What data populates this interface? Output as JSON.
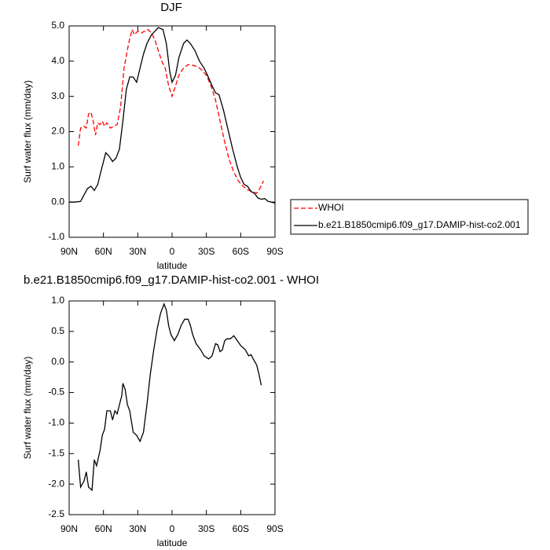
{
  "chart_data": [
    {
      "type": "line",
      "title": "DJF",
      "ylabel": "Surf water flux (mm/day)",
      "xlabel": "latitude",
      "xlim": [
        90,
        -90
      ],
      "xticks": [
        {
          "value": 90,
          "label": "90N"
        },
        {
          "value": 60,
          "label": "60N"
        },
        {
          "value": 30,
          "label": "30N"
        },
        0,
        {
          "value": -30,
          "label": "30S"
        },
        {
          "value": -60,
          "label": "60S"
        },
        {
          "value": -90,
          "label": "90S"
        }
      ],
      "ylim": [
        -1,
        5
      ],
      "yticks": [
        {
          "value": -1,
          "label": "-1.0"
        },
        {
          "value": 0,
          "label": "0.0"
        },
        {
          "value": 1,
          "label": "1.0"
        },
        {
          "value": 2,
          "label": "2.0"
        },
        {
          "value": 3,
          "label": "3.0"
        },
        {
          "value": 4,
          "label": "4.0"
        },
        {
          "value": 5,
          "label": "5.0"
        }
      ],
      "legend": "outside-right",
      "series": [
        {
          "name": "WHOI",
          "color": "#ff0000",
          "style": "dashed",
          "x": [
            82,
            80,
            77,
            75,
            73,
            71,
            69,
            67,
            65,
            63,
            61,
            59,
            57,
            54,
            51,
            48,
            45,
            42,
            38,
            35,
            33,
            30,
            27,
            24,
            21,
            18,
            15,
            12,
            9,
            6,
            3,
            0,
            -3,
            -6,
            -10,
            -14,
            -18,
            -22,
            -26,
            -30,
            -34,
            -38,
            -42,
            -46,
            -50,
            -54,
            -58,
            -62,
            -66,
            -70,
            -74,
            -77,
            -80
          ],
          "values": [
            1.6,
            2.1,
            2.15,
            2.1,
            2.5,
            2.55,
            2.3,
            1.9,
            2.25,
            2.2,
            2.3,
            2.15,
            2.25,
            2.1,
            2.15,
            2.2,
            2.7,
            3.8,
            4.5,
            4.9,
            4.75,
            4.85,
            4.8,
            4.85,
            4.9,
            4.8,
            4.6,
            4.3,
            4.0,
            3.8,
            3.3,
            3.0,
            3.3,
            3.6,
            3.8,
            3.9,
            3.88,
            3.85,
            3.75,
            3.6,
            3.3,
            2.9,
            2.3,
            1.7,
            1.2,
            0.85,
            0.6,
            0.45,
            0.35,
            0.3,
            0.25,
            0.4,
            0.6
          ]
        },
        {
          "name": "b.e21.B1850cmip6.f09_g17.DAMIP-hist-co2.001",
          "color": "#000000",
          "style": "solid",
          "x": [
            90,
            85,
            80,
            77,
            74,
            71,
            68,
            65,
            62,
            58,
            55,
            52,
            49,
            46,
            43,
            40,
            37,
            34,
            31,
            28,
            25,
            22,
            18,
            15,
            12,
            8,
            5,
            2,
            0,
            -3,
            -6,
            -10,
            -13,
            -16,
            -20,
            -24,
            -28,
            -31,
            -35,
            -38,
            -41,
            -45,
            -49,
            -53,
            -57,
            -60,
            -63,
            -66,
            -69,
            -72,
            -75,
            -78,
            -81,
            -84,
            -87,
            -90
          ],
          "values": [
            0.0,
            0.0,
            0.02,
            0.2,
            0.38,
            0.45,
            0.33,
            0.5,
            0.9,
            1.4,
            1.3,
            1.15,
            1.25,
            1.5,
            2.3,
            3.2,
            3.55,
            3.55,
            3.4,
            3.8,
            4.2,
            4.5,
            4.75,
            4.85,
            4.95,
            4.9,
            4.5,
            3.7,
            3.4,
            3.6,
            4.1,
            4.5,
            4.6,
            4.5,
            4.3,
            4.0,
            3.8,
            3.6,
            3.3,
            3.1,
            3.05,
            2.6,
            2.05,
            1.5,
            1.0,
            0.7,
            0.5,
            0.45,
            0.3,
            0.25,
            0.12,
            0.08,
            0.1,
            0.02,
            0.0,
            -0.03
          ]
        }
      ]
    },
    {
      "type": "line",
      "title": "b.e21.B1850cmip6.f09_g17.DAMIP-hist-co2.001 - WHOI",
      "ylabel": "Surf water flux (mm/day)",
      "xlabel": "latitude",
      "xlim": [
        90,
        -90
      ],
      "xticks": [
        {
          "value": 90,
          "label": "90N"
        },
        {
          "value": 60,
          "label": "60N"
        },
        {
          "value": 30,
          "label": "30N"
        },
        0,
        {
          "value": -30,
          "label": "30S"
        },
        {
          "value": -60,
          "label": "60S"
        },
        {
          "value": -90,
          "label": "90S"
        }
      ],
      "ylim": [
        -2.5,
        1
      ],
      "yticks": [
        -2.5,
        {
          "value": -2,
          "label": "-2.0"
        },
        -1.5,
        {
          "value": -1,
          "label": "-1.0"
        },
        -0.5,
        {
          "value": 0,
          "label": "0.0"
        },
        0.5,
        {
          "value": 1,
          "label": "1.0"
        }
      ],
      "series": [
        {
          "color": "#000000",
          "style": "solid",
          "x": [
            82,
            80,
            77,
            75,
            73,
            70,
            68,
            66,
            63,
            61,
            59,
            57,
            54,
            52,
            50,
            48,
            46,
            44,
            43,
            41,
            39,
            37,
            34,
            31,
            28,
            25,
            22,
            19,
            16,
            13,
            10,
            7,
            5,
            3,
            1,
            -2,
            -5,
            -8,
            -11,
            -14,
            -16,
            -18,
            -21,
            -25,
            -28,
            -32,
            -35,
            -38,
            -40,
            -42,
            -44,
            -46,
            -48,
            -51,
            -54,
            -57,
            -60,
            -64,
            -67,
            -69,
            -71,
            -74,
            -76,
            -78
          ],
          "values": [
            -1.6,
            -2.05,
            -1.95,
            -1.8,
            -2.05,
            -2.1,
            -1.6,
            -1.7,
            -1.45,
            -1.2,
            -1.1,
            -0.8,
            -0.8,
            -0.95,
            -0.8,
            -0.85,
            -0.7,
            -0.55,
            -0.35,
            -0.45,
            -0.7,
            -0.8,
            -1.15,
            -1.2,
            -1.3,
            -1.15,
            -0.7,
            -0.2,
            0.2,
            0.55,
            0.8,
            0.95,
            0.85,
            0.6,
            0.45,
            0.35,
            0.45,
            0.6,
            0.7,
            0.7,
            0.6,
            0.45,
            0.3,
            0.2,
            0.1,
            0.05,
            0.1,
            0.3,
            0.28,
            0.17,
            0.2,
            0.35,
            0.38,
            0.38,
            0.43,
            0.35,
            0.27,
            0.2,
            0.1,
            0.12,
            0.05,
            -0.05,
            -0.2,
            -0.38
          ]
        }
      ]
    }
  ]
}
